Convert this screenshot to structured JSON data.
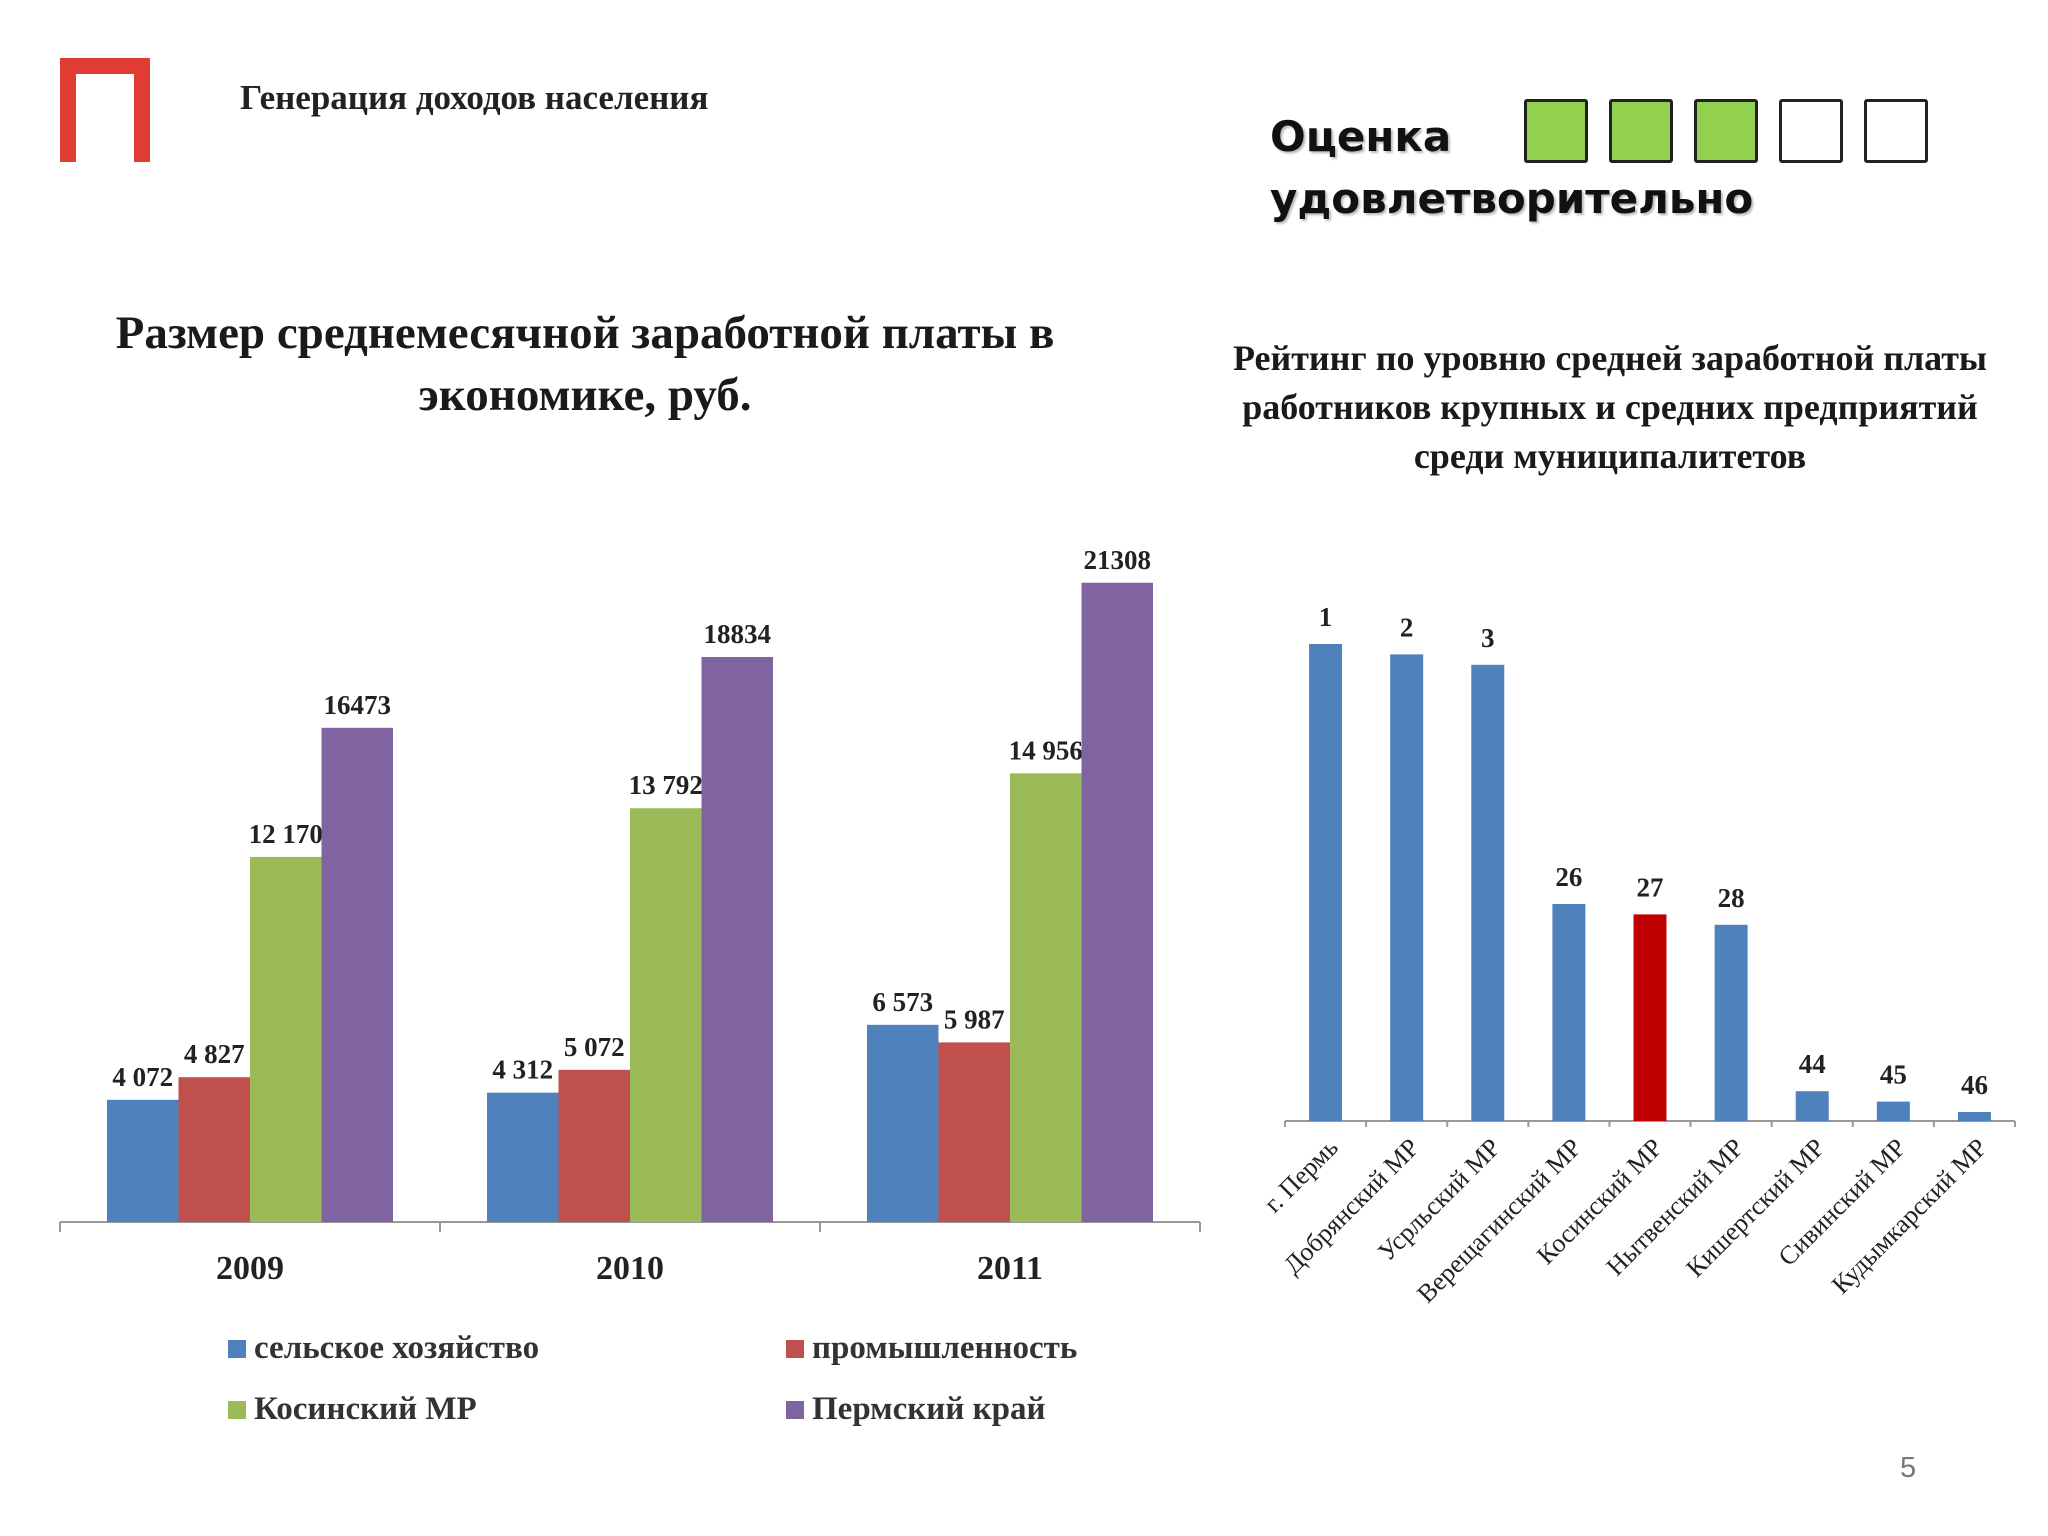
{
  "header": {
    "title": "Генерация доходов населения"
  },
  "rating": {
    "label": "Оценка удовлетворительно",
    "boxes": [
      {
        "color": "#92d050"
      },
      {
        "color": "#92d050"
      },
      {
        "color": "#92d050"
      },
      {
        "color": "#ffffff"
      },
      {
        "color": "#ffffff"
      }
    ]
  },
  "colors": {
    "logo": "#e03c31",
    "highlight": "#c00000"
  },
  "page": {
    "number": "5"
  },
  "chart_data": [
    {
      "type": "bar",
      "title": "Размер среднемесячной заработной платы в экономике, руб.",
      "categories": [
        "2009",
        "2010",
        "2011"
      ],
      "series": [
        {
          "name": "сельское хозяйство",
          "color": "#4f81bd",
          "values": [
            4072,
            4312,
            6573
          ],
          "labels": [
            "4 072",
            "4 312",
            "6 573"
          ]
        },
        {
          "name": "промышленность",
          "color": "#c0504d",
          "values": [
            4827,
            5072,
            5987
          ],
          "labels": [
            "4 827",
            "5 072",
            "5 987"
          ]
        },
        {
          "name": "Косинский МР",
          "color": "#9bbb59",
          "values": [
            12170,
            13792,
            14956
          ],
          "labels": [
            "12 170",
            "13 792",
            "14 956"
          ]
        },
        {
          "name": "Пермский край",
          "color": "#8064a2",
          "values": [
            16473,
            18834,
            21308
          ],
          "labels": [
            "16 473",
            "18 834",
            "21 308"
          ]
        }
      ],
      "ylim": [
        0,
        22000
      ],
      "grid": false,
      "legend": "bottom"
    },
    {
      "type": "bar",
      "title": "Рейтинг по уровню средней заработной платы работников крупных и средних предприятий среди муниципалитетов",
      "categories": [
        "г. Пермь",
        "Добрянский МР",
        "Усрльский МР",
        "Верещагинский МР",
        "Косинский МР",
        "Нытвенский МР",
        "Кишертский МР",
        "Сивинский МР",
        "Кудымкарский МР"
      ],
      "values": [
        1,
        2,
        3,
        26,
        27,
        28,
        44,
        45,
        46
      ],
      "highlight": "Косинский МР",
      "color": "#4f81bd",
      "grid": false,
      "legend": "none"
    }
  ]
}
